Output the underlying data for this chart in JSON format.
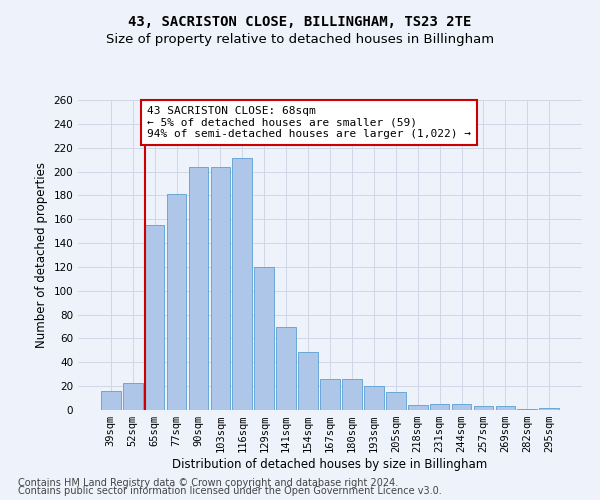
{
  "title": "43, SACRISTON CLOSE, BILLINGHAM, TS23 2TE",
  "subtitle": "Size of property relative to detached houses in Billingham",
  "xlabel": "Distribution of detached houses by size in Billingham",
  "ylabel": "Number of detached properties",
  "categories": [
    "39sqm",
    "52sqm",
    "65sqm",
    "77sqm",
    "90sqm",
    "103sqm",
    "116sqm",
    "129sqm",
    "141sqm",
    "154sqm",
    "167sqm",
    "180sqm",
    "193sqm",
    "205sqm",
    "218sqm",
    "231sqm",
    "244sqm",
    "257sqm",
    "269sqm",
    "282sqm",
    "295sqm"
  ],
  "values": [
    16,
    23,
    155,
    181,
    204,
    204,
    211,
    120,
    70,
    49,
    26,
    26,
    20,
    15,
    4,
    5,
    5,
    3,
    3,
    1,
    2
  ],
  "bar_color": "#aec6e8",
  "bar_edge_color": "#5a9fd4",
  "annotation_text_line1": "43 SACRISTON CLOSE: 68sqm",
  "annotation_text_line2": "← 5% of detached houses are smaller (59)",
  "annotation_text_line3": "94% of semi-detached houses are larger (1,022) →",
  "annotation_box_color": "#ffffff",
  "annotation_box_edge_color": "#cc0000",
  "vline_color": "#cc0000",
  "grid_color": "#d0d8e8",
  "background_color": "#eef2fa",
  "ylim": [
    0,
    260
  ],
  "yticks": [
    0,
    20,
    40,
    60,
    80,
    100,
    120,
    140,
    160,
    180,
    200,
    220,
    240,
    260
  ],
  "footer_line1": "Contains HM Land Registry data © Crown copyright and database right 2024.",
  "footer_line2": "Contains public sector information licensed under the Open Government Licence v3.0.",
  "title_fontsize": 10,
  "subtitle_fontsize": 9.5,
  "axis_label_fontsize": 8.5,
  "tick_fontsize": 7.5,
  "annotation_fontsize": 8,
  "footer_fontsize": 7
}
